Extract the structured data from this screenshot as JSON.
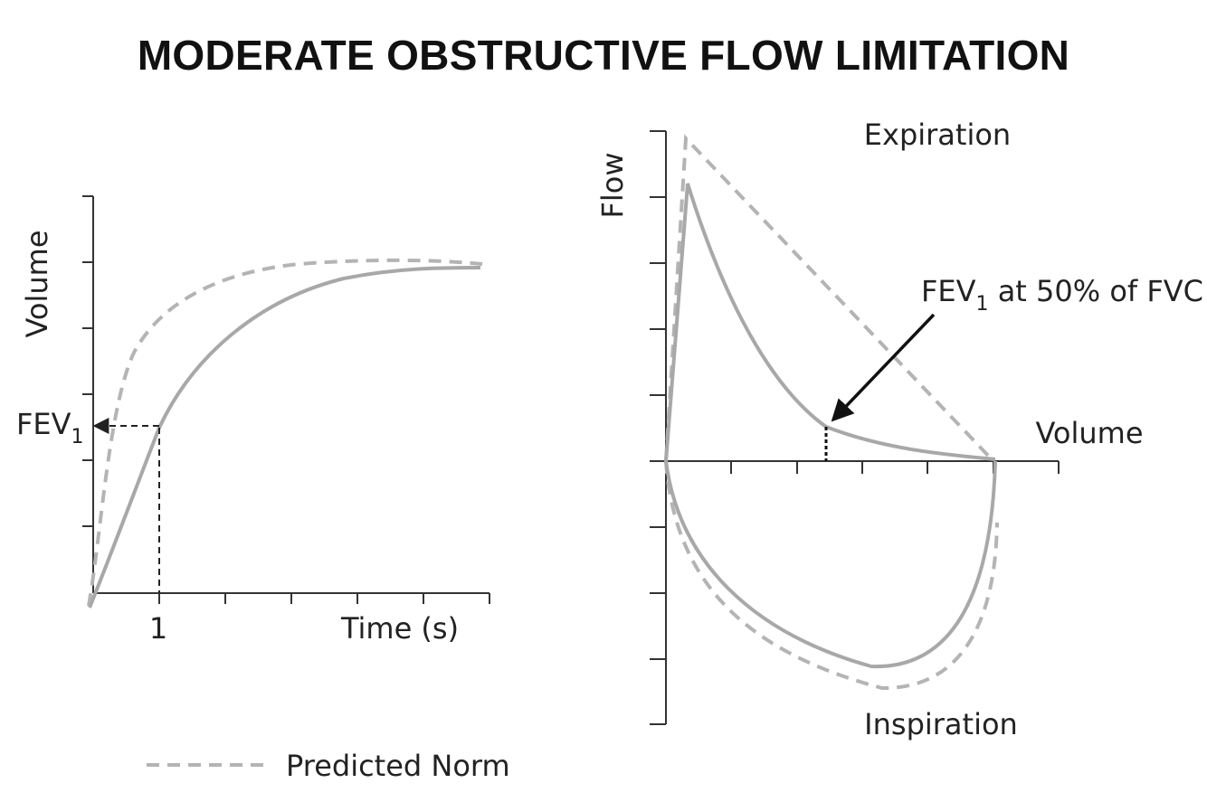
{
  "title": "MODERATE OBSTRUCTIVE FLOW LIMITATION",
  "colors": {
    "measured_curve": "#a8a8a8",
    "predicted_curve": "#b4b4b4",
    "axes": "#333333",
    "text": "#222222",
    "title": "#111111"
  },
  "left_panel": {
    "y_label": "Volume",
    "x_label": "Time (s)",
    "x_tick_label": "1",
    "fev_label": "FEV",
    "fev_subscript": "1"
  },
  "right_panel": {
    "y_label": "Flow",
    "x_label": "Volume",
    "top_label": "Expiration",
    "bottom_label": "Inspiration",
    "annotation_main": "FEV",
    "annotation_sub": "1",
    "annotation_rest": " at 50% of FVC"
  },
  "legend": {
    "label": "Predicted Norm"
  }
}
